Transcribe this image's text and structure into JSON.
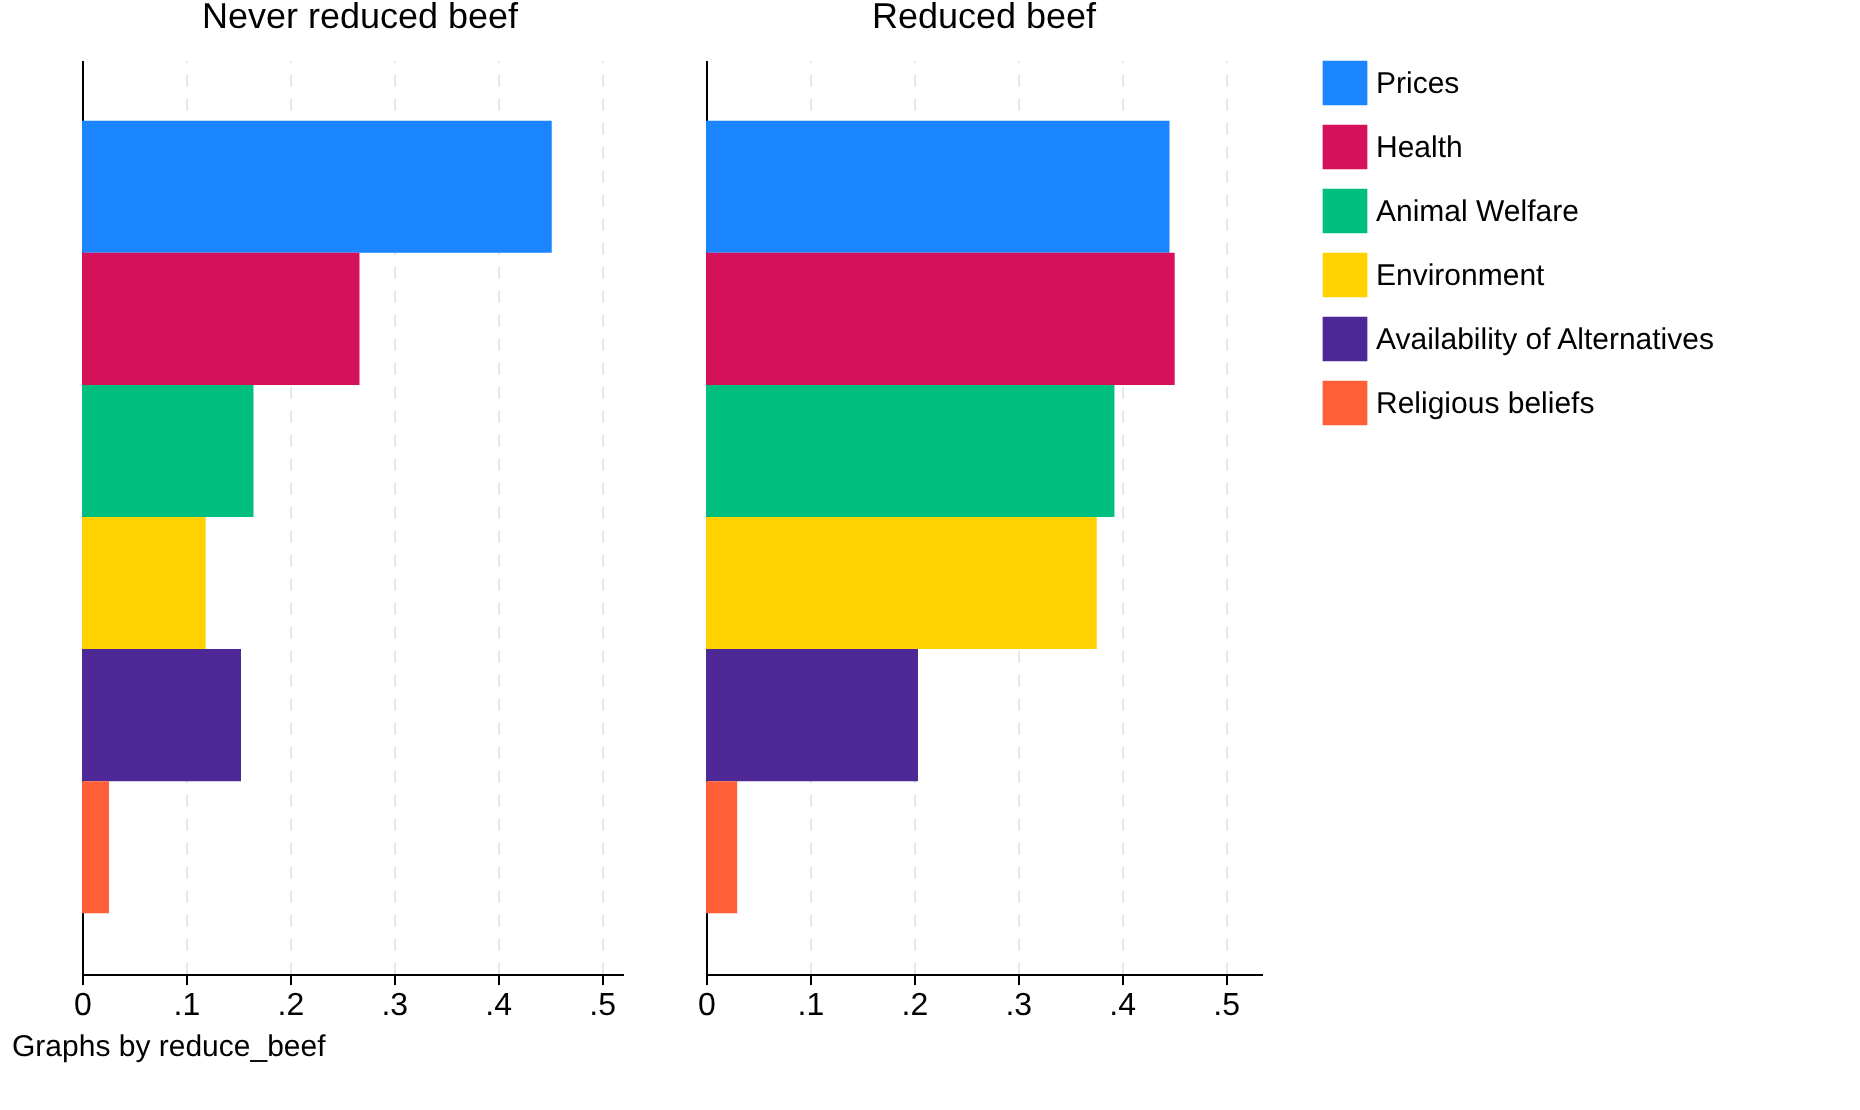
{
  "chart_data": [
    {
      "type": "bar",
      "orientation": "horizontal",
      "title": "Never reduced beef",
      "categories": [
        null
      ],
      "xlim": [
        0,
        0.535
      ],
      "xticks": [
        0,
        {
          "value": 0.1,
          "label": ".1"
        },
        {
          "value": 0.2,
          "label": ".2"
        },
        {
          "value": 0.3,
          "label": ".3"
        },
        {
          "value": 0.4,
          "label": ".4"
        },
        {
          "value": 0.5,
          "label": ".5"
        }
      ],
      "grid": "x",
      "legend": false,
      "annotations": [
        "Graphs by reduce_beef"
      ],
      "series": [
        {
          "color": "#1a85ff",
          "values": [
            0.452
          ]
        },
        {
          "color": "#d41159",
          "values": [
            0.267
          ]
        },
        {
          "color": "#00bf7f",
          "values": [
            0.165
          ]
        },
        {
          "color": "#ffd200",
          "values": [
            0.119
          ]
        },
        {
          "color": "#4d2896",
          "values": [
            0.153
          ]
        },
        {
          "color": "#ff5f37",
          "values": [
            0.026
          ]
        }
      ]
    },
    {
      "type": "bar",
      "orientation": "horizontal",
      "title": "Reduced beef",
      "categories": [
        null
      ],
      "xlim": [
        0,
        0.535
      ],
      "xticks": [
        0,
        {
          "value": 0.1,
          "label": ".1"
        },
        {
          "value": 0.2,
          "label": ".2"
        },
        {
          "value": 0.3,
          "label": ".3"
        },
        {
          "value": 0.4,
          "label": ".4"
        },
        {
          "value": 0.5,
          "label": ".5"
        }
      ],
      "grid": "x",
      "legend": "right",
      "series": [
        {
          "name": "Prices",
          "color": "#1a85ff",
          "values": [
            0.446
          ]
        },
        {
          "name": "Health",
          "color": "#d41159",
          "values": [
            0.451
          ]
        },
        {
          "name": "Animal Welfare",
          "color": "#00bf7f",
          "values": [
            0.393
          ]
        },
        {
          "name": "Environment",
          "color": "#ffd200",
          "values": [
            0.376
          ]
        },
        {
          "name": "Availability of Alternatives",
          "color": "#4d2896",
          "values": [
            0.204
          ]
        },
        {
          "name": "Religious beliefs",
          "color": "#ff5f37",
          "values": [
            0.03
          ]
        }
      ]
    }
  ]
}
